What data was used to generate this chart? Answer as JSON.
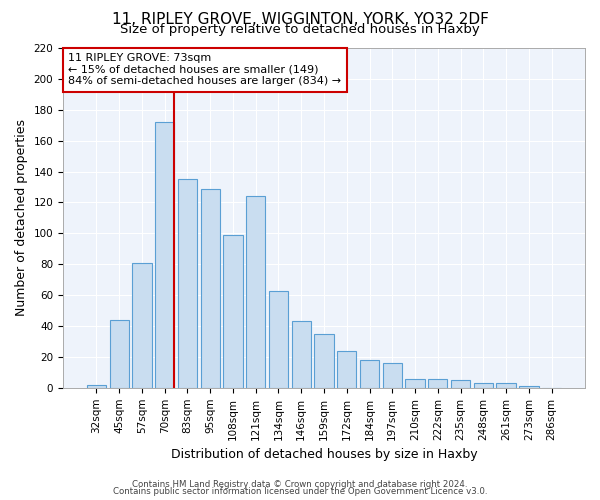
{
  "title": "11, RIPLEY GROVE, WIGGINTON, YORK, YO32 2DF",
  "subtitle": "Size of property relative to detached houses in Haxby",
  "xlabel": "Distribution of detached houses by size in Haxby",
  "ylabel": "Number of detached properties",
  "bar_labels": [
    "32sqm",
    "45sqm",
    "57sqm",
    "70sqm",
    "83sqm",
    "95sqm",
    "108sqm",
    "121sqm",
    "134sqm",
    "146sqm",
    "159sqm",
    "172sqm",
    "184sqm",
    "197sqm",
    "210sqm",
    "222sqm",
    "235sqm",
    "248sqm",
    "261sqm",
    "273sqm",
    "286sqm"
  ],
  "bar_values": [
    2,
    44,
    81,
    172,
    135,
    129,
    99,
    124,
    63,
    43,
    35,
    24,
    18,
    16,
    6,
    6,
    5,
    3,
    3,
    1,
    0
  ],
  "bar_color": "#c9ddf0",
  "bar_edge_color": "#5a9fd4",
  "vline_x": 3.5,
  "vline_color": "#cc0000",
  "annotation_title": "11 RIPLEY GROVE: 73sqm",
  "annotation_line1": "← 15% of detached houses are smaller (149)",
  "annotation_line2": "84% of semi-detached houses are larger (834) →",
  "annotation_box_color": "#ffffff",
  "annotation_box_edge": "#cc0000",
  "ylim": [
    0,
    220
  ],
  "yticks": [
    0,
    20,
    40,
    60,
    80,
    100,
    120,
    140,
    160,
    180,
    200,
    220
  ],
  "footer1": "Contains HM Land Registry data © Crown copyright and database right 2024.",
  "footer2": "Contains public sector information licensed under the Open Government Licence v3.0.",
  "title_fontsize": 11,
  "subtitle_fontsize": 9.5,
  "ylabel_fontsize": 9,
  "xlabel_fontsize": 9,
  "tick_fontsize": 7.5,
  "footer_fontsize": 6.2
}
